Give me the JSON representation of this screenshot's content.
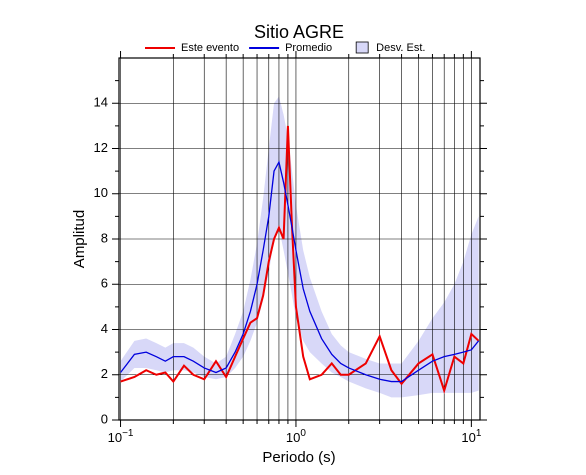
{
  "chart_data": {
    "type": "line",
    "title": "Sitio AGRE",
    "x_label": "Periodo (s)",
    "y_label": "Amplitud",
    "x_scale": "log",
    "grid": true,
    "xlim": [
      0.098,
      11.2
    ],
    "ylim": [
      0,
      16
    ],
    "xticks": [
      {
        "value": 0.1,
        "label": "10",
        "exponent": "−1"
      },
      {
        "value": 1,
        "label": "10",
        "exponent": "0"
      },
      {
        "value": 10,
        "label": "10",
        "exponent": "1"
      }
    ],
    "x_minor_ticks": [
      0.2,
      0.3,
      0.4,
      0.5,
      0.6,
      0.7,
      0.8,
      0.9,
      2,
      3,
      4,
      5,
      6,
      7,
      8,
      9
    ],
    "yticks": [
      0,
      2,
      4,
      6,
      8,
      10,
      12,
      14
    ],
    "y_minor_ticks": [
      1,
      3,
      5,
      7,
      9,
      11,
      13,
      15
    ],
    "x": [
      0.1,
      0.12,
      0.14,
      0.16,
      0.18,
      0.2,
      0.23,
      0.26,
      0.3,
      0.35,
      0.4,
      0.45,
      0.5,
      0.55,
      0.6,
      0.65,
      0.7,
      0.75,
      0.8,
      0.85,
      0.9,
      0.95,
      1.0,
      1.1,
      1.2,
      1.4,
      1.6,
      1.8,
      2.0,
      2.5,
      3.0,
      3.5,
      4.0,
      5.0,
      6.0,
      7.0,
      8.0,
      9.0,
      10,
      11
    ],
    "series": [
      {
        "name": "Este evento",
        "color": "#ee0000",
        "values": [
          1.7,
          1.9,
          2.2,
          2.0,
          2.1,
          1.7,
          2.4,
          2.0,
          1.8,
          2.6,
          1.9,
          2.8,
          3.6,
          4.3,
          4.5,
          5.5,
          7.0,
          8.0,
          8.5,
          8.0,
          13.0,
          8.5,
          5.0,
          2.8,
          1.8,
          2.0,
          2.5,
          2.0,
          2.0,
          2.5,
          3.7,
          2.2,
          1.6,
          2.5,
          2.9,
          1.3,
          2.8,
          2.5,
          3.8,
          3.5
        ]
      },
      {
        "name": "Promedio",
        "color": "#0000dd",
        "values": [
          2.1,
          2.9,
          3.0,
          2.8,
          2.6,
          2.8,
          2.8,
          2.6,
          2.3,
          2.1,
          2.3,
          3.0,
          3.8,
          4.8,
          6.0,
          7.5,
          9.0,
          11.0,
          11.4,
          10.5,
          9.5,
          8.5,
          7.5,
          5.8,
          4.8,
          3.6,
          2.9,
          2.5,
          2.3,
          2.0,
          1.8,
          1.7,
          1.7,
          2.2,
          2.6,
          2.8,
          2.9,
          3.0,
          3.1,
          3.5
        ]
      },
      {
        "name": "Desv. Est.",
        "color": "#d8d8f8",
        "lower": [
          1.7,
          2.3,
          2.3,
          2.2,
          2.1,
          2.2,
          2.2,
          2.1,
          1.9,
          1.8,
          1.9,
          2.3,
          2.8,
          3.5,
          4.3,
          5.3,
          6.5,
          8.0,
          8.5,
          7.5,
          6.5,
          5.5,
          4.5,
          3.5,
          3.0,
          2.5,
          2.1,
          1.9,
          1.7,
          1.4,
          1.2,
          1.0,
          1.0,
          1.1,
          1.2,
          1.2,
          1.2,
          1.2,
          1.2,
          1.3
        ],
        "upper": [
          2.6,
          3.5,
          3.6,
          3.4,
          3.2,
          3.4,
          3.4,
          3.2,
          2.8,
          2.5,
          2.8,
          3.8,
          4.8,
          6.2,
          7.8,
          9.8,
          12.0,
          14.0,
          14.3,
          13.5,
          12.5,
          11.0,
          9.5,
          7.5,
          6.3,
          4.8,
          3.8,
          3.3,
          3.0,
          2.7,
          2.5,
          2.5,
          2.5,
          3.5,
          4.5,
          5.2,
          6.0,
          7.0,
          8.2,
          9.0
        ]
      }
    ]
  }
}
